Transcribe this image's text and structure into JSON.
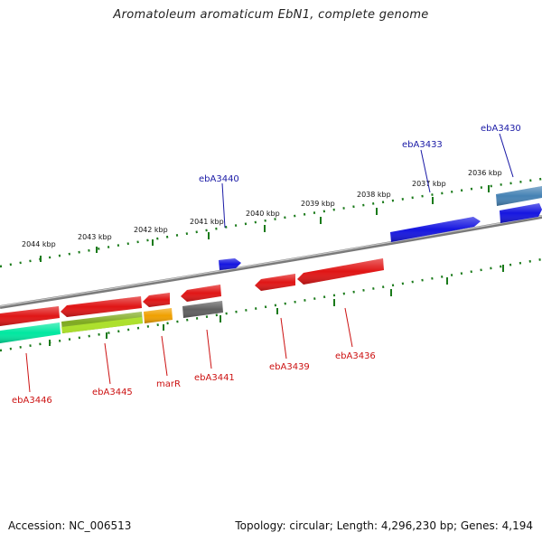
{
  "title": "Aromatoleum aromaticum EbN1, complete genome",
  "footer": {
    "accession": "Accession: NC_006513",
    "topology": "Topology: circular; Length: 4,296,230 bp; Genes: 4,194"
  },
  "colors": {
    "forward_label": "#1a1aa6",
    "reverse_label": "#cc1111",
    "tick": "#1a7a1a",
    "backbone": "#8a8a8a"
  },
  "ticks": [
    {
      "label": "2044 kbp"
    },
    {
      "label": "2043 kbp"
    },
    {
      "label": "2042 kbp"
    },
    {
      "label": "2041 kbp"
    },
    {
      "label": "2040 kbp"
    },
    {
      "label": "2039 kbp"
    },
    {
      "label": "2038 kbp"
    },
    {
      "label": "2037 kbp"
    },
    {
      "label": "2036 kbp"
    }
  ],
  "forward_genes": [
    {
      "label": "ebA3440",
      "color": "#1515e0"
    },
    {
      "label": "ebA3433",
      "color": "#1515e0"
    },
    {
      "label": "ebA3430",
      "color": "#4682b4"
    },
    {
      "label": "",
      "color": "#1515e0"
    }
  ],
  "reverse_genes": [
    {
      "label": "ebA3446",
      "color": "#e01515"
    },
    {
      "label": "ebA3445",
      "color": "#e01515"
    },
    {
      "label": "marR",
      "color": "#e01515"
    },
    {
      "label": "ebA3441",
      "color": "#e01515"
    },
    {
      "label": "ebA3439",
      "color": "#e01515"
    },
    {
      "label": "ebA3436",
      "color": "#e01515"
    }
  ],
  "annotation_blocks": [
    {
      "color": "#00e8a0"
    },
    {
      "color": "#7faa20"
    },
    {
      "color": "#f0a000"
    },
    {
      "color": "#606060"
    }
  ]
}
